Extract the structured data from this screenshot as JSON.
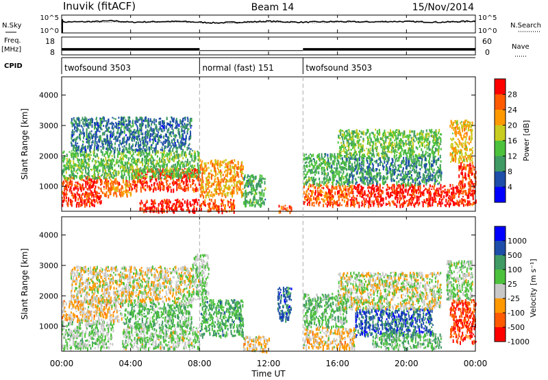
{
  "header": {
    "station": "Inuvik (fitACF)",
    "beam": "Beam 14",
    "date": "15/Nov/2014"
  },
  "chart_data": [
    {
      "type": "line",
      "panel": "noise",
      "left_label": "N.Sky",
      "right_label": "N.Search",
      "left_ticks": [
        "10^5",
        "10^0"
      ],
      "right_ticks": [
        "10^5",
        "10^0"
      ],
      "series": [
        {
          "name": "N.Sky",
          "style": "solid",
          "x": [
            0,
            1,
            2,
            3,
            4,
            5,
            6,
            7,
            8,
            9,
            10,
            11,
            12,
            13,
            14,
            15,
            16,
            17,
            18,
            19,
            20,
            21,
            22,
            23,
            24
          ],
          "y": [
            3.1,
            3.1,
            3.2,
            3.4,
            3.0,
            3.1,
            3.2,
            3.2,
            3.0,
            2.8,
            3.0,
            3.1,
            3.3,
            3.1,
            3.0,
            3.1,
            3.2,
            3.1,
            3.1,
            3.2,
            3.2,
            3.1,
            3.0,
            3.2,
            3.3
          ]
        },
        {
          "name": "N.Search",
          "style": "dotted",
          "x": [
            0,
            2,
            4,
            6,
            8,
            10,
            12,
            14,
            16,
            18,
            20,
            22,
            24
          ],
          "y": [
            3.0,
            3.1,
            2.9,
            3.0,
            2.9,
            2.7,
            3.0,
            2.9,
            3.0,
            3.0,
            3.1,
            2.9,
            3.1
          ]
        }
      ]
    },
    {
      "type": "line",
      "panel": "frequency",
      "left_label": "Freq.",
      "left_unit": "[MHz]",
      "left_ticks": [
        "18",
        "8"
      ],
      "right_label": "Nave",
      "right_ticks": [
        "60",
        "0"
      ],
      "ylim_left": [
        8,
        18
      ],
      "ylim_right": [
        0,
        60
      ],
      "segments": [
        {
          "start": 0,
          "end": 8,
          "freq_high": 11.8,
          "freq_low": 10.4
        },
        {
          "start": 8,
          "end": 14,
          "freq_high": 10.6,
          "freq_low": 10.4
        },
        {
          "start": 14,
          "end": 24,
          "freq_high": 11.8,
          "freq_low": 10.4
        }
      ]
    },
    {
      "type": "table",
      "panel": "cpid",
      "label": "CPID",
      "modes": [
        {
          "name": "twofsound 3503",
          "start": 0,
          "end": 8
        },
        {
          "name": "normal (fast) 151",
          "start": 8,
          "end": 14
        },
        {
          "name": "twofsound 3503",
          "start": 14,
          "end": 24
        }
      ]
    },
    {
      "type": "heatmap",
      "panel": "power",
      "ylabel": "Slant Range [km]",
      "yticks": [
        1000,
        2000,
        3000,
        4000
      ],
      "ylim": [
        180,
        4600
      ],
      "colorbar_label": "Power [dB]",
      "colorbar_ticks": [
        "28",
        "24",
        "20",
        "16",
        "12",
        "8",
        "4"
      ],
      "colorscale": [
        "#0000ff",
        "#1e4ea8",
        "#3f9a63",
        "#4cc23c",
        "#c8cc20",
        "#ff9900",
        "#ff5a00",
        "#ff0000"
      ],
      "scale": [
        0,
        32
      ],
      "regions": [
        {
          "t0": 0.0,
          "t1": 2.3,
          "r0": 400,
          "r1": 1350,
          "v": 28
        },
        {
          "t0": 2.3,
          "t1": 4.0,
          "r0": 700,
          "r1": 1300,
          "v": 24
        },
        {
          "t0": 4.0,
          "t1": 8.0,
          "r0": 900,
          "r1": 1600,
          "v": 28
        },
        {
          "t0": 4.5,
          "t1": 8.0,
          "r0": 200,
          "r1": 600,
          "v": 30
        },
        {
          "t0": 0.0,
          "t1": 8.0,
          "r0": 1300,
          "r1": 2200,
          "v": 14
        },
        {
          "t0": 0.5,
          "t1": 7.5,
          "r0": 2200,
          "r1": 3300,
          "v": 8
        },
        {
          "t0": 8.0,
          "t1": 10.5,
          "r0": 700,
          "r1": 1900,
          "v": 22
        },
        {
          "t0": 8.0,
          "t1": 10.0,
          "r0": 200,
          "r1": 600,
          "v": 26
        },
        {
          "t0": 10.5,
          "t1": 11.8,
          "r0": 400,
          "r1": 1400,
          "v": 12
        },
        {
          "t0": 12.5,
          "t1": 13.3,
          "r0": 200,
          "r1": 400,
          "v": 26
        },
        {
          "t0": 14.0,
          "t1": 17.0,
          "r0": 400,
          "r1": 1100,
          "v": 26
        },
        {
          "t0": 14.0,
          "t1": 16.5,
          "r0": 1100,
          "r1": 2100,
          "v": 12
        },
        {
          "t0": 17.0,
          "t1": 23.0,
          "r0": 400,
          "r1": 1100,
          "v": 30
        },
        {
          "t0": 16.5,
          "t1": 22.0,
          "r0": 1100,
          "r1": 2000,
          "v": 10
        },
        {
          "t0": 16.0,
          "t1": 22.0,
          "r0": 2000,
          "r1": 2900,
          "v": 14
        },
        {
          "t0": 23.0,
          "t1": 24.0,
          "r0": 400,
          "r1": 1800,
          "v": 28
        },
        {
          "t0": 22.5,
          "t1": 23.8,
          "r0": 1800,
          "r1": 3200,
          "v": 20
        }
      ]
    },
    {
      "type": "heatmap",
      "panel": "velocity",
      "ylabel": "Slant Range [km]",
      "yticks": [
        1000,
        2000,
        3000,
        4000
      ],
      "ylim": [
        180,
        4600
      ],
      "xlabel": "Time UT",
      "xticks": [
        "00:00",
        "04:00",
        "08:00",
        "12:00",
        "16:00",
        "20:00",
        "00:00"
      ],
      "colorbar_label": "Velocity [m s⁻¹]",
      "colorbar_ticks": [
        "1000",
        "500",
        "100",
        "25",
        "-25",
        "-100",
        "-500",
        "-1000"
      ],
      "colorscale": [
        "#ff0000",
        "#ff5a00",
        "#ff9900",
        "#c8c8c8",
        "#4cc23c",
        "#3f9a63",
        "#1e4ea8",
        "#0000ff"
      ],
      "scale": [
        -1200,
        1200
      ],
      "regions": [
        {
          "t0": 0.0,
          "t1": 3.0,
          "r0": 300,
          "r1": 1200,
          "v": 30
        },
        {
          "t0": 0.0,
          "t1": 3.5,
          "r0": 1200,
          "r1": 1900,
          "v": -300
        },
        {
          "t0": 3.5,
          "t1": 8.0,
          "r0": 300,
          "r1": 1000,
          "v": 0
        },
        {
          "t0": 3.5,
          "t1": 7.5,
          "r0": 1000,
          "r1": 1800,
          "v": 200
        },
        {
          "t0": 0.5,
          "t1": 7.5,
          "r0": 1800,
          "r1": 3000,
          "v": -200
        },
        {
          "t0": 7.5,
          "t1": 8.5,
          "r0": 1900,
          "r1": 3400,
          "v": 0
        },
        {
          "t0": 8.0,
          "t1": 10.5,
          "r0": 700,
          "r1": 1900,
          "v": 300
        },
        {
          "t0": 10.5,
          "t1": 12.0,
          "r0": 200,
          "r1": 700,
          "v": -300
        },
        {
          "t0": 12.5,
          "t1": 13.3,
          "r0": 1200,
          "r1": 2300,
          "v": 600
        },
        {
          "t0": 14.0,
          "t1": 17.0,
          "r0": 300,
          "r1": 1000,
          "v": -300
        },
        {
          "t0": 14.0,
          "t1": 16.5,
          "r0": 1000,
          "r1": 2100,
          "v": 200
        },
        {
          "t0": 17.0,
          "t1": 21.5,
          "r0": 700,
          "r1": 1600,
          "v": 700
        },
        {
          "t0": 18.0,
          "t1": 22.0,
          "r0": 300,
          "r1": 800,
          "v": 250
        },
        {
          "t0": 16.0,
          "t1": 22.0,
          "r0": 1600,
          "r1": 2800,
          "v": -120
        },
        {
          "t0": 22.5,
          "t1": 24.0,
          "r0": 500,
          "r1": 1900,
          "v": -900
        },
        {
          "t0": 22.3,
          "t1": 23.8,
          "r0": 1900,
          "r1": 3200,
          "v": 0
        }
      ]
    }
  ]
}
